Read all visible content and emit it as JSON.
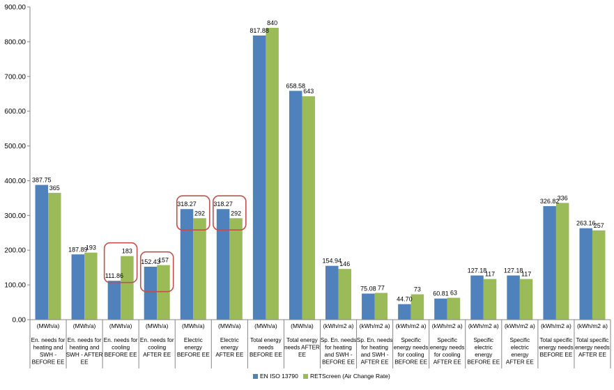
{
  "chart_data": {
    "type": "bar",
    "ylim": [
      0,
      900
    ],
    "yticks": [
      "0.00",
      "100.00",
      "200.00",
      "300.00",
      "400.00",
      "500.00",
      "600.00",
      "700.00",
      "800.00",
      "900.00"
    ],
    "grid": false,
    "legend_position": "bottom",
    "categories": [
      {
        "unit": "(MWh/a)",
        "lines": [
          "En. needs for",
          "heating and",
          "SWH -",
          "BEFORE EE"
        ]
      },
      {
        "unit": "(MWh/a)",
        "lines": [
          "En. needs for",
          "heating and",
          "SWH - AFTER",
          "EE"
        ]
      },
      {
        "unit": "(MWh/a)",
        "lines": [
          "En. needs for",
          "cooling",
          "BEFORE EE"
        ]
      },
      {
        "unit": "(MWh/a)",
        "lines": [
          "En. needs for",
          "cooling",
          "AFTER EE"
        ]
      },
      {
        "unit": "(MWh/a)",
        "lines": [
          "Electric",
          "energy",
          "BEFORE EE"
        ]
      },
      {
        "unit": "(MWh/a)",
        "lines": [
          "Electric",
          "energy",
          "AFTER EE"
        ]
      },
      {
        "unit": "(MWh/a)",
        "lines": [
          "Total energy",
          "needs",
          "BEFORE EE"
        ]
      },
      {
        "unit": "(MWh/a)",
        "lines": [
          "Total energy",
          "needs AFTER",
          "EE"
        ]
      },
      {
        "unit": "(kWh/m2 a)",
        "lines": [
          "Sp. En. needs",
          "for heating",
          "and SWH -",
          "BEFORE EE"
        ]
      },
      {
        "unit": "(kWh/m2 a)",
        "lines": [
          "Sp. En. needs",
          "for heating",
          "and SWH -",
          "AFTER EE"
        ]
      },
      {
        "unit": "(kWh/m2 a)",
        "lines": [
          "Specific",
          "energy needs",
          "for cooling",
          "BEFORE EE"
        ]
      },
      {
        "unit": "(kWh/m2 a)",
        "lines": [
          "Specific",
          "energy needs",
          "for cooling",
          "AFTER EE"
        ]
      },
      {
        "unit": "(kWh/m2 a)",
        "lines": [
          "Specific",
          "electric",
          "energy",
          "BEFORE EE"
        ]
      },
      {
        "unit": "(kWh/m2 a)",
        "lines": [
          "Specific",
          "electric",
          "energy",
          "AFTER EE"
        ]
      },
      {
        "unit": "(kWh/m2 a)",
        "lines": [
          "Total specific",
          "energy needs",
          "BEFORE EE"
        ]
      },
      {
        "unit": "(kWh/m2 a)",
        "lines": [
          "Total specific",
          "energy needs",
          "AFTER EE"
        ]
      }
    ],
    "series": [
      {
        "name": "EN ISO 13790",
        "color": "#4f81bd",
        "values": [
          387.75,
          187.89,
          111.86,
          152.43,
          318.27,
          318.27,
          817.88,
          658.58,
          154.94,
          75.08,
          44.7,
          60.81,
          127.18,
          127.18,
          326.82,
          263.16
        ],
        "labels": [
          "387.75",
          "187.89",
          "111.86",
          "152.43",
          "318.27",
          "318.27",
          "817.88",
          "658.58",
          "154.94",
          "75.08",
          "44.70",
          "60.81",
          "127.18",
          "127.18",
          "326.82",
          "263.16"
        ]
      },
      {
        "name": "RETScreen (Air Change Rate)",
        "color": "#9bbb59",
        "values": [
          365,
          193,
          183,
          157,
          292,
          292,
          840,
          643,
          146,
          77,
          73,
          63,
          117,
          117,
          336,
          257
        ],
        "labels": [
          "365",
          "193",
          "183",
          "157",
          "292",
          "292",
          "840",
          "643",
          "146",
          "77",
          "73",
          "63",
          "117",
          "117",
          "336",
          "257"
        ]
      }
    ],
    "highlight_color": "#c0504d",
    "highlighted_categories": [
      2,
      3,
      4,
      5
    ]
  }
}
